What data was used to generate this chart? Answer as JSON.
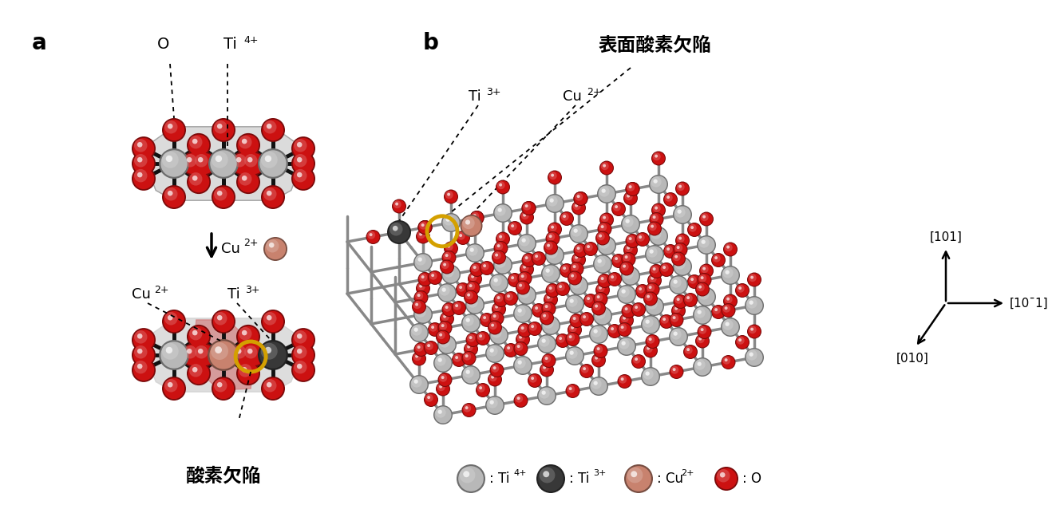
{
  "bg_color": "#ffffff",
  "ti4_color": "#b8b8b8",
  "ti3_color": "#383838",
  "cu2_color": "#c8826e",
  "o_color": "#cc1111",
  "bond_color": "#111111",
  "poly_gray": "#aaaaaa",
  "poly_red": "#d07070",
  "yellow_ring": "#d4a000",
  "label_a": "a",
  "label_b": "b",
  "label_O": "O",
  "label_Ti4": "Ti",
  "label_Ti4sup": "4+",
  "label_Cu2_arrow": "Cu",
  "label_Cu2_arrow_sup": "2+",
  "label_Cu2_bot": "Cu",
  "label_Cu2_bot_sup": "2+",
  "label_Ti3_bot": "Ti",
  "label_Ti3_bot_sup": "3+",
  "label_vacancy": "酸素欠陥",
  "label_surface_vacancy": "表面酸素欠陥",
  "label_Ti3_b": "Ti",
  "label_Ti3_b_sup": "3+",
  "label_Cu2_b": "Cu",
  "label_Cu2_b_sup": "2+",
  "axis_101": "[101]",
  "axis_101bar": "[10¯1]",
  "axis_010": "[010]",
  "legend_ti4": ": Ti",
  "legend_ti4_sup": "4+",
  "legend_ti3": ": Ti",
  "legend_ti3_sup": "3+",
  "legend_cu2": ": Cu",
  "legend_cu2_sup": "2+",
  "legend_o": ": O"
}
